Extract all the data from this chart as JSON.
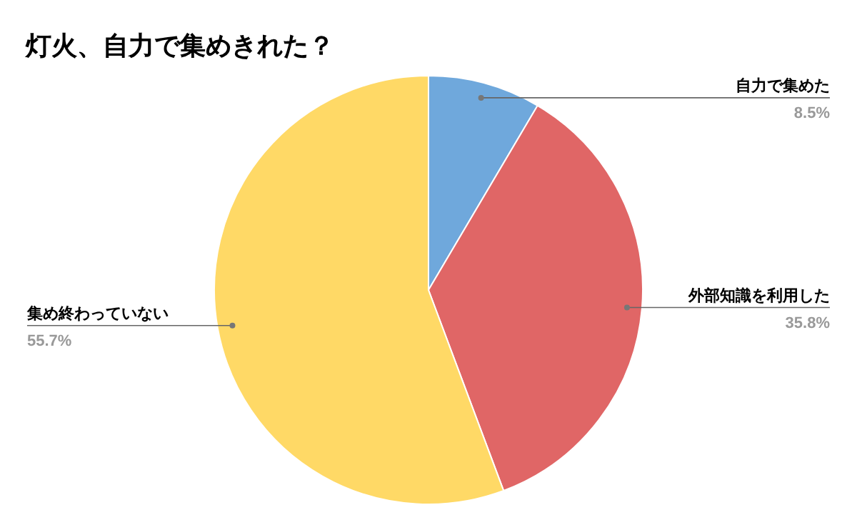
{
  "chart_data": {
    "type": "pie",
    "title": "灯火、自力で集めきれた？",
    "categories": [
      "自力で集めた",
      "外部知識を利用した",
      "集め終わっていない"
    ],
    "values": [
      8.5,
      35.8,
      55.7
    ],
    "colors": [
      "#6fa8dc",
      "#e06666",
      "#ffd966"
    ],
    "value_labels": [
      "8.5%",
      "35.8%",
      "55.7%"
    ]
  }
}
